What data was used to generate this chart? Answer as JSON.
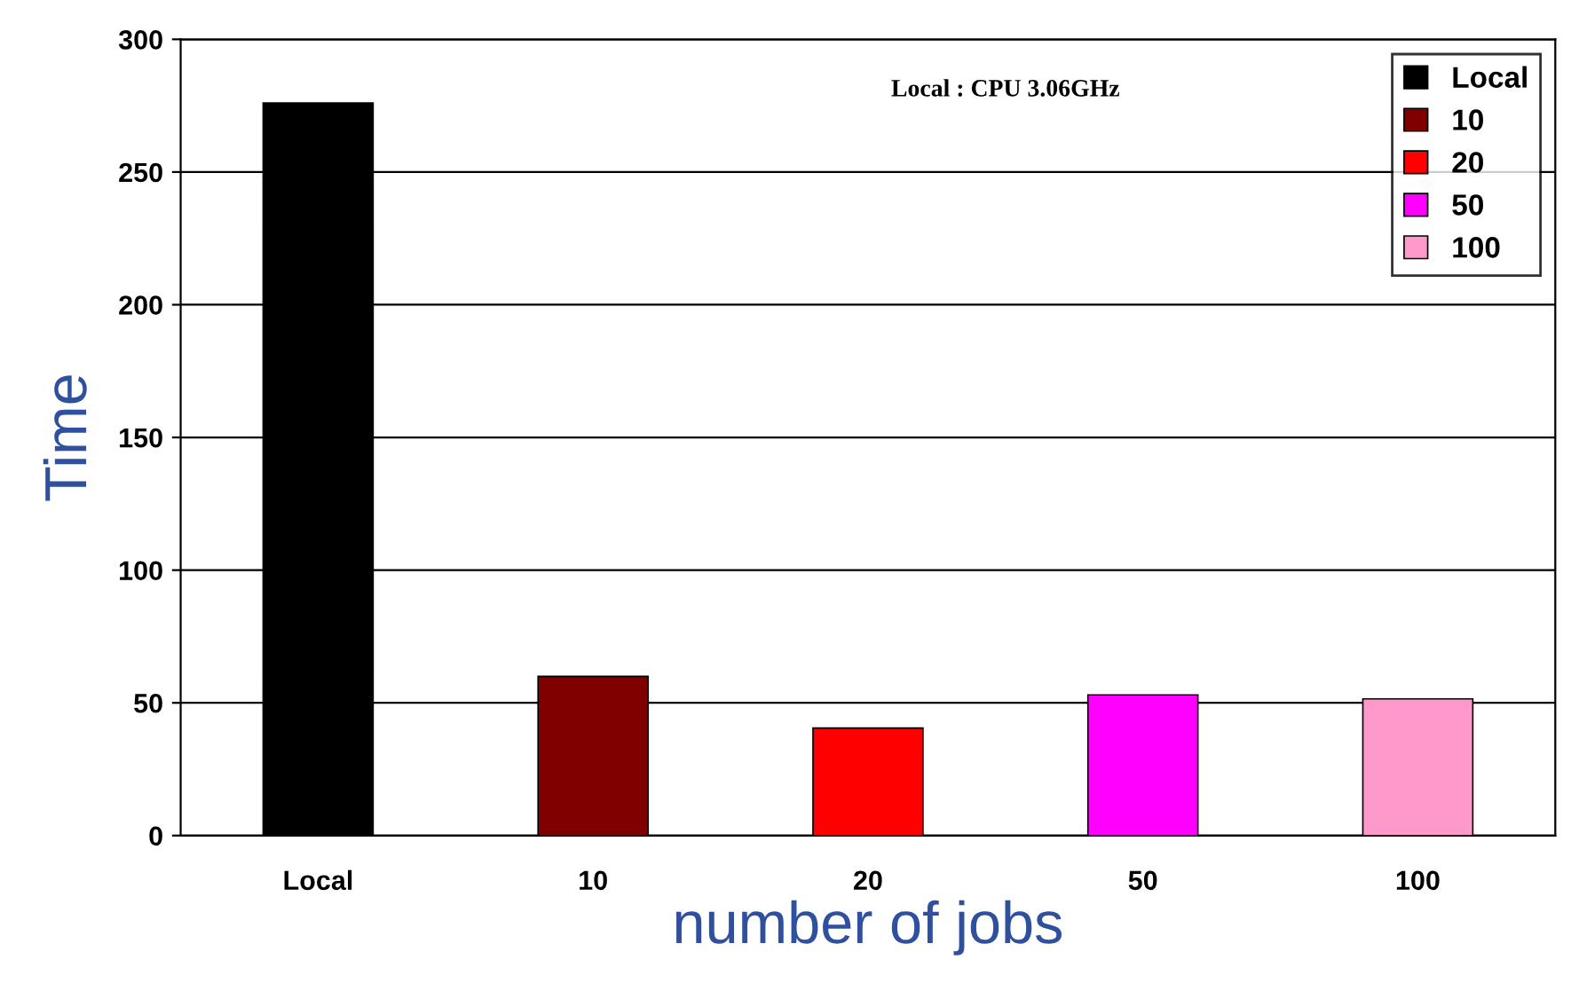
{
  "chart_data": {
    "type": "bar",
    "categories": [
      "Local",
      "10",
      "20",
      "50",
      "100"
    ],
    "series": [
      {
        "name": "Local",
        "color": "#000000",
        "values": [
          276,
          null,
          null,
          null,
          null
        ]
      },
      {
        "name": "10",
        "color": "#800000",
        "values": [
          null,
          60,
          null,
          null,
          null
        ]
      },
      {
        "name": "20",
        "color": "#ff0000",
        "values": [
          null,
          null,
          40.5,
          null,
          null
        ]
      },
      {
        "name": "50",
        "color": "#ff00ff",
        "values": [
          null,
          null,
          null,
          53,
          null
        ]
      },
      {
        "name": "100",
        "color": "#ff99cc",
        "values": [
          null,
          null,
          null,
          null,
          51.5
        ]
      }
    ],
    "xlabel": "number of jobs",
    "ylabel": "Time",
    "annotations": [
      "Local : CPU 3.06GHz"
    ],
    "ylim": [
      0,
      300
    ],
    "yticks": [
      0,
      50,
      100,
      150,
      200,
      250,
      300
    ],
    "grid": "y",
    "legend": "top right"
  }
}
